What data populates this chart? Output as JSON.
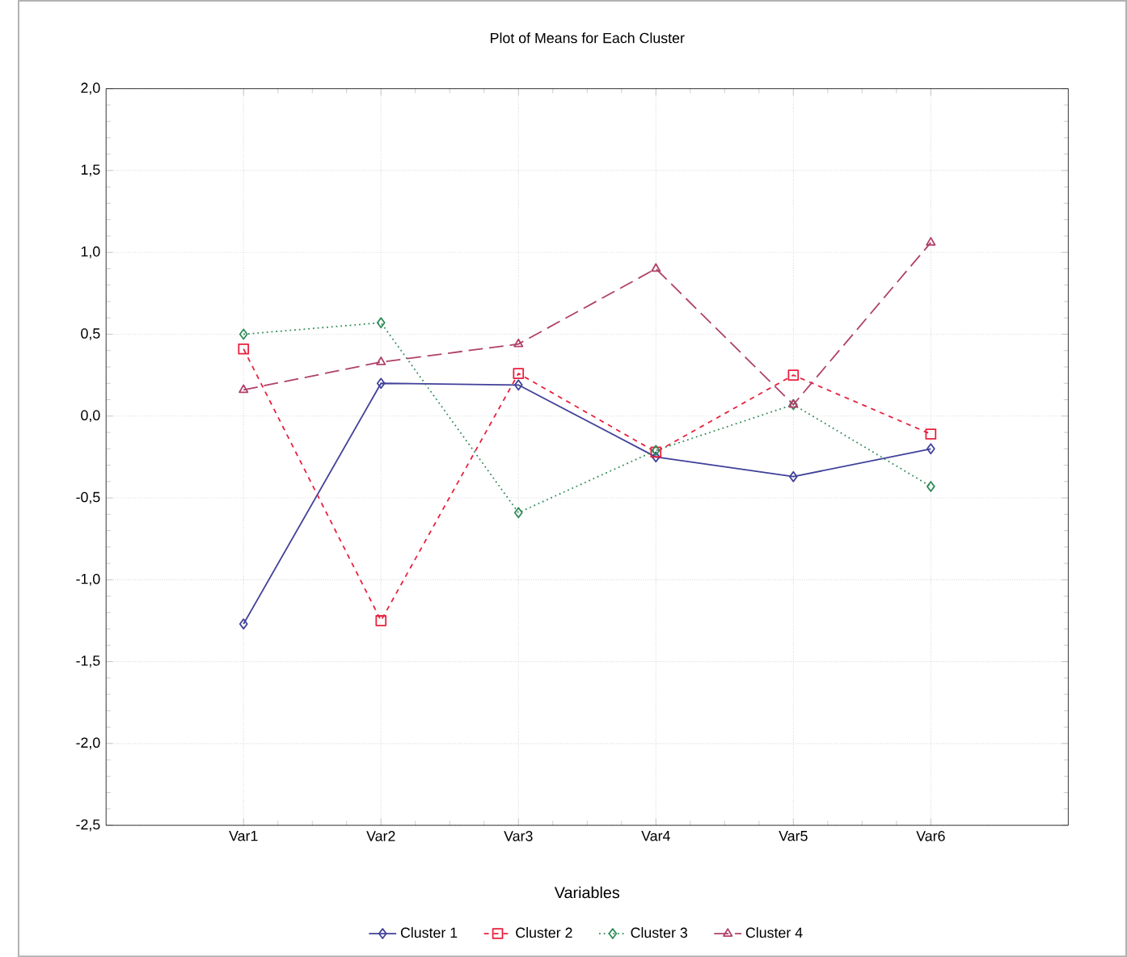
{
  "chart_data": {
    "type": "line",
    "title": "Plot of Means for Each Cluster",
    "xlabel": "Variables",
    "categories": [
      "Var1",
      "Var2",
      "Var3",
      "Var4",
      "Var5",
      "Var6"
    ],
    "series": [
      {
        "name": "Cluster 1",
        "color": "#40409a",
        "marker": "diamond",
        "line_style": "solid",
        "values": [
          -1.27,
          0.2,
          0.19,
          -0.25,
          -0.37,
          -0.2
        ]
      },
      {
        "name": "Cluster 2",
        "color": "#e8203c",
        "marker": "square",
        "line_style": "dashed",
        "values": [
          0.41,
          -1.25,
          0.26,
          -0.22,
          0.25,
          -0.11
        ]
      },
      {
        "name": "Cluster 3",
        "color": "#2e8b57",
        "marker": "diamond",
        "line_style": "dotted",
        "values": [
          0.5,
          0.57,
          -0.59,
          -0.21,
          0.07,
          -0.43
        ]
      },
      {
        "name": "Cluster 4",
        "color": "#b0406a",
        "marker": "triangle",
        "line_style": "dashed",
        "values": [
          0.16,
          0.33,
          0.44,
          0.9,
          0.07,
          1.06
        ]
      }
    ],
    "ylim": [
      -2.5,
      2.0
    ],
    "yticks": [
      {
        "value": -2.5,
        "label": "-2,5"
      },
      {
        "value": -2.0,
        "label": "-2,0"
      },
      {
        "value": -1.5,
        "label": "-1,5"
      },
      {
        "value": -1.0,
        "label": "-1,0"
      },
      {
        "value": -0.5,
        "label": "-0,5"
      },
      {
        "value": 0.0,
        "label": "0,0"
      },
      {
        "value": 0.5,
        "label": "0,5"
      },
      {
        "value": 1.0,
        "label": "1,0"
      },
      {
        "value": 1.5,
        "label": "1,5"
      },
      {
        "value": 2.0,
        "label": "2,0"
      }
    ],
    "grid": true,
    "legend": "bottom"
  }
}
